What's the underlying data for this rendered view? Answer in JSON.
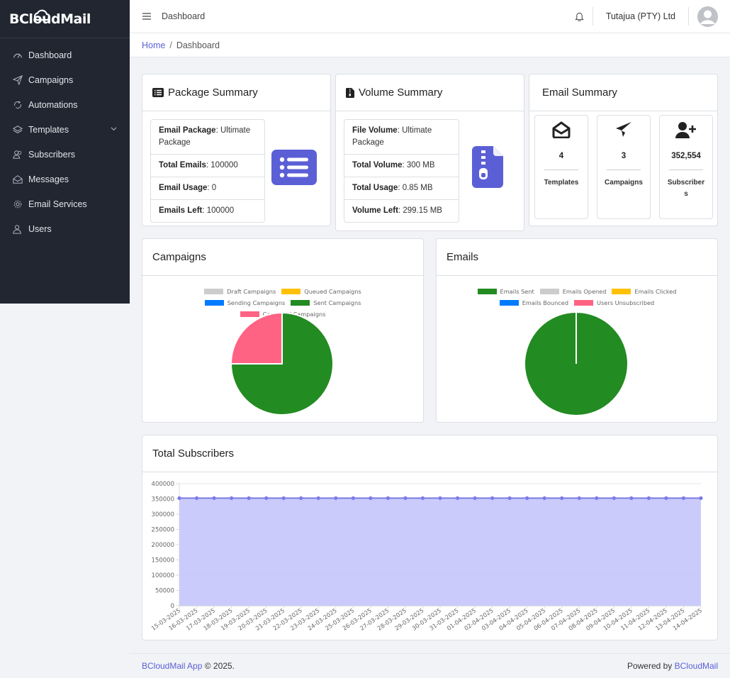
{
  "brand": {
    "name": "BCloudMail"
  },
  "sidebar": {
    "items": [
      {
        "label": "Dashboard",
        "icon": "speedometer-icon"
      },
      {
        "label": "Campaigns",
        "icon": "paper-plane-icon"
      },
      {
        "label": "Automations",
        "icon": "arrows-loop-icon"
      },
      {
        "label": "Templates",
        "icon": "layers-icon"
      },
      {
        "label": "Subscribers",
        "icon": "people-icon"
      },
      {
        "label": "Messages",
        "icon": "envelope-open-icon"
      },
      {
        "label": "Email Services",
        "icon": "gear-icon"
      },
      {
        "label": "Users",
        "icon": "user-icon"
      }
    ]
  },
  "header": {
    "title": "Dashboard",
    "company": "Tutajua (PTY) Ltd"
  },
  "breadcrumb": {
    "home": "Home",
    "separator": "/",
    "current": "Dashboard"
  },
  "package": {
    "title": "Package Summary",
    "rows": [
      {
        "label": "Email Package",
        "value": ": Ultimate Package"
      },
      {
        "label": "Total Emails",
        "value": ": 100000"
      },
      {
        "label": "Email Usage",
        "value": ": 0"
      },
      {
        "label": "Emails Left",
        "value": ": 100000"
      }
    ]
  },
  "volume": {
    "title": "Volume Summary",
    "rows": [
      {
        "label": "File Volume",
        "value": ": Ultimate Package"
      },
      {
        "label": "Total Volume",
        "value": ": 300 MB"
      },
      {
        "label": "Total Usage",
        "value": ": 0.85 MB"
      },
      {
        "label": "Volume Left",
        "value": ": 299.15 MB"
      }
    ]
  },
  "email_summary": {
    "title": "Email Summary",
    "boxes": [
      {
        "value": "4",
        "label": "Templates",
        "icon": "envelope-open-icon"
      },
      {
        "value": "3",
        "label": "Campaigns",
        "icon": "paper-plane-icon"
      },
      {
        "value": "352,554",
        "label": "Subscribers",
        "icon": "user-plus-icon"
      }
    ]
  },
  "campaigns_card": {
    "title": "Campaigns"
  },
  "emails_card": {
    "title": "Emails"
  },
  "subscribers_card": {
    "title": "Total Subscribers"
  },
  "colors": {
    "accent": "#5b5fd6",
    "sidebar": "#212631",
    "green": "#228b22",
    "pink": "#ff6384",
    "gray": "#cccccc",
    "yellow": "#ffc107",
    "blue": "#007bff",
    "area": "#c8c8fb",
    "line": "#7b7be8"
  },
  "chart_data": [
    {
      "type": "pie",
      "labels": [
        "Draft Campaigns",
        "Queued Campaigns",
        "Sending Campaigns",
        "Sent Campaigns",
        "Cancelled Campaigns"
      ],
      "values": [
        0,
        0,
        0,
        3,
        1
      ],
      "colors": [
        "#cccccc",
        "#ffc107",
        "#007bff",
        "#228b22",
        "#ff6384"
      ],
      "legend": "top"
    },
    {
      "type": "pie",
      "labels": [
        "Emails Sent",
        "Emails Opened",
        "Emails Clicked",
        "Emails Bounced",
        "Users Unsubscribed"
      ],
      "values": [
        1,
        0,
        0,
        0,
        0
      ],
      "colors": [
        "#228b22",
        "#cccccc",
        "#ffc107",
        "#007bff",
        "#ff6384"
      ],
      "legend": "top"
    },
    {
      "type": "area",
      "x": [
        "15-03-2025",
        "16-03-2025",
        "17-03-2025",
        "18-03-2025",
        "19-03-2025",
        "20-03-2025",
        "21-03-2025",
        "22-03-2025",
        "23-03-2025",
        "24-03-2025",
        "25-03-2025",
        "26-03-2025",
        "27-03-2025",
        "28-03-2025",
        "29-03-2025",
        "30-03-2025",
        "31-03-2025",
        "01-04-2025",
        "02-04-2025",
        "03-04-2025",
        "04-04-2025",
        "05-04-2025",
        "06-04-2025",
        "07-04-2025",
        "08-04-2025",
        "09-04-2025",
        "10-04-2025",
        "11-04-2025",
        "12-04-2025",
        "13-04-2025",
        "14-04-2025"
      ],
      "series": [
        {
          "values": [
            352554,
            352554,
            352554,
            352554,
            352554,
            352554,
            352554,
            352554,
            352554,
            352554,
            352554,
            352554,
            352554,
            352554,
            352554,
            352554,
            352554,
            352554,
            352554,
            352554,
            352554,
            352554,
            352554,
            352554,
            352554,
            352554,
            352554,
            352554,
            352554,
            352554,
            352554
          ]
        }
      ],
      "ylim": [
        0,
        400000
      ],
      "yticks": [
        "400000",
        "350000",
        "300000",
        "250000",
        "200000",
        "150000",
        "100000",
        "50000",
        "0"
      ],
      "grid": true
    }
  ],
  "footer": {
    "app": "BCloudMail App",
    "copy": " © 2025.",
    "powered": "Powered by ",
    "powered_link": "BCloudMail"
  }
}
